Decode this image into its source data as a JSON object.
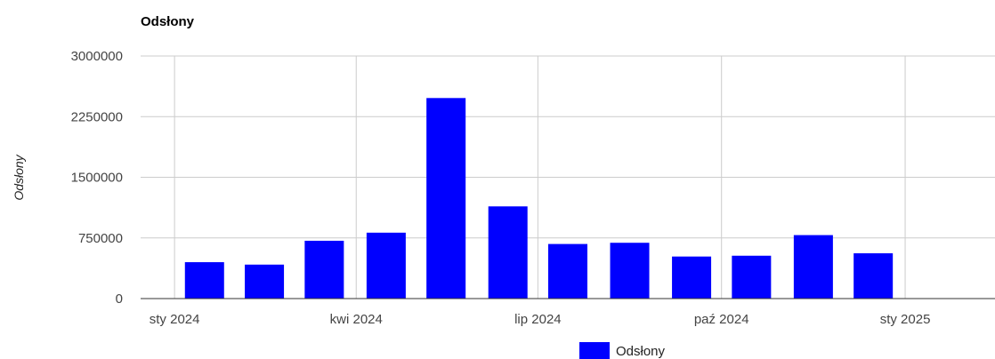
{
  "chart_data": {
    "type": "bar",
    "title": "Odsłony",
    "ylabel": "Odsłony",
    "xlabel": "",
    "series": [
      {
        "name": "Odsłony",
        "color": "#0000ff",
        "x": [
          "2024-01",
          "2024-02",
          "2024-03",
          "2024-04",
          "2024-05",
          "2024-06",
          "2024-07",
          "2024-08",
          "2024-09",
          "2024-10",
          "2024-11",
          "2024-12"
        ],
        "values": [
          450000,
          420000,
          715000,
          815000,
          2480000,
          1140000,
          675000,
          690000,
          520000,
          530000,
          785000,
          560000
        ]
      }
    ],
    "xlim": [
      "2023-12-15",
      "2025-02-15"
    ],
    "ylim": [
      0,
      3000000
    ],
    "x_ticks": [
      {
        "date": "2024-01-01",
        "label": "sty 2024"
      },
      {
        "date": "2024-04-01",
        "label": "kwi 2024"
      },
      {
        "date": "2024-07-01",
        "label": "lip 2024"
      },
      {
        "date": "2024-10-01",
        "label": "paź 2024"
      },
      {
        "date": "2025-01-01",
        "label": "sty 2025"
      }
    ],
    "y_ticks": [
      0,
      750000,
      1500000,
      2250000,
      3000000
    ],
    "y_tick_labels": [
      "0",
      "750000",
      "1500000",
      "2250000",
      "3000000"
    ],
    "grid": true,
    "legend": {
      "position": "bottom",
      "entries": [
        "Odsłony"
      ]
    }
  }
}
